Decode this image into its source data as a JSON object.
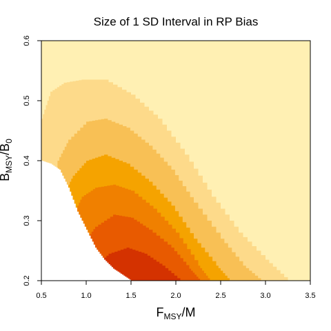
{
  "chart_data": {
    "type": "heatmap",
    "title": "Size of 1 SD Interval in RP Bias",
    "xlabel": {
      "main": "F",
      "sub": "MSY",
      "tail": "/M"
    },
    "ylabel": {
      "main": "B",
      "sub": "MSY",
      "mid": "/B",
      "sub2": "0"
    },
    "xlim": [
      0.5,
      3.5
    ],
    "ylim": [
      0.2,
      0.6
    ],
    "x_ticks": [
      "0.5",
      "1.0",
      "1.5",
      "2.0",
      "2.5",
      "3.0",
      "3.5"
    ],
    "y_ticks": [
      "0.2",
      "0.3",
      "0.4",
      "0.5",
      "0.6"
    ],
    "levels": [
      {
        "color": "#FFF0B3"
      },
      {
        "color": "#FDDA8A"
      },
      {
        "color": "#F8C055"
      },
      {
        "color": "#F5A300"
      },
      {
        "color": "#F08000"
      },
      {
        "color": "#E85A00"
      },
      {
        "color": "#D43200"
      }
    ],
    "region_boundaries": [
      {
        "level": 1,
        "points": [
          [
            0.5,
            0.47
          ],
          [
            0.6,
            0.515
          ],
          [
            0.75,
            0.53
          ],
          [
            0.95,
            0.535
          ],
          [
            1.2,
            0.535
          ],
          [
            1.5,
            0.51
          ],
          [
            1.8,
            0.47
          ],
          [
            2.1,
            0.41
          ],
          [
            2.4,
            0.34
          ],
          [
            2.7,
            0.28
          ],
          [
            3.0,
            0.235
          ],
          [
            3.25,
            0.2
          ]
        ]
      },
      {
        "level": 2,
        "points": [
          [
            0.68,
            0.4
          ],
          [
            0.8,
            0.435
          ],
          [
            1.0,
            0.465
          ],
          [
            1.2,
            0.47
          ],
          [
            1.45,
            0.455
          ],
          [
            1.7,
            0.425
          ],
          [
            1.95,
            0.385
          ],
          [
            2.2,
            0.33
          ],
          [
            2.5,
            0.27
          ],
          [
            2.75,
            0.225
          ],
          [
            2.95,
            0.2
          ]
        ]
      },
      {
        "level": 3,
        "points": [
          [
            0.75,
            0.345
          ],
          [
            0.85,
            0.375
          ],
          [
            1.0,
            0.4
          ],
          [
            1.2,
            0.41
          ],
          [
            1.45,
            0.395
          ],
          [
            1.7,
            0.365
          ],
          [
            1.95,
            0.325
          ],
          [
            2.2,
            0.27
          ],
          [
            2.45,
            0.225
          ],
          [
            2.6,
            0.2
          ]
        ]
      },
      {
        "level": 4,
        "points": [
          [
            0.85,
            0.31
          ],
          [
            0.95,
            0.34
          ],
          [
            1.1,
            0.355
          ],
          [
            1.3,
            0.36
          ],
          [
            1.5,
            0.35
          ],
          [
            1.75,
            0.32
          ],
          [
            2.0,
            0.28
          ],
          [
            2.25,
            0.225
          ],
          [
            2.38,
            0.2
          ]
        ]
      },
      {
        "level": 5,
        "points": [
          [
            0.98,
            0.265
          ],
          [
            1.1,
            0.29
          ],
          [
            1.3,
            0.31
          ],
          [
            1.5,
            0.305
          ],
          [
            1.7,
            0.285
          ],
          [
            1.95,
            0.255
          ],
          [
            2.15,
            0.22
          ],
          [
            2.27,
            0.2
          ]
        ]
      },
      {
        "level": 6,
        "points": [
          [
            1.1,
            0.225
          ],
          [
            1.25,
            0.245
          ],
          [
            1.45,
            0.255
          ],
          [
            1.65,
            0.245
          ],
          [
            1.85,
            0.225
          ],
          [
            2.05,
            0.2
          ]
        ]
      }
    ],
    "lower_valid_boundary": [
      [
        0.5,
        0.4
      ],
      [
        0.6,
        0.395
      ],
      [
        0.7,
        0.385
      ],
      [
        0.8,
        0.355
      ],
      [
        0.9,
        0.315
      ],
      [
        1.0,
        0.285
      ],
      [
        1.1,
        0.255
      ],
      [
        1.2,
        0.235
      ],
      [
        1.3,
        0.22
      ],
      [
        1.4,
        0.21
      ],
      [
        1.5,
        0.2
      ]
    ]
  }
}
